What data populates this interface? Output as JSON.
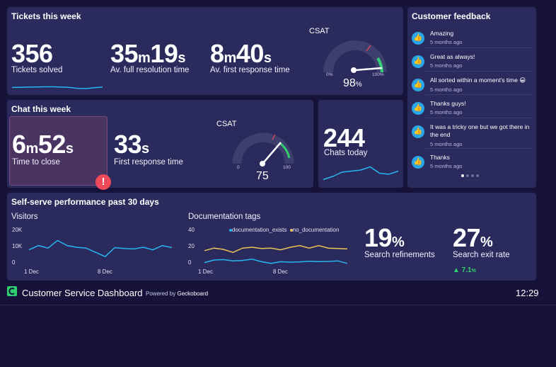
{
  "tickets": {
    "title": "Tickets this week",
    "solved": {
      "value": "356",
      "label": "Tickets solved"
    },
    "resolution": {
      "m": "35",
      "m_unit": "m",
      "s": "19",
      "s_unit": "s",
      "label": "Av. full resolution time"
    },
    "first_response": {
      "m": "8",
      "m_unit": "m",
      "s": "40",
      "s_unit": "s",
      "label": "Av. first response time"
    },
    "csat": {
      "label": "CSAT",
      "value": "98",
      "unit": "%",
      "min_label": "0%",
      "max_label": "100%",
      "level": 0.98
    }
  },
  "chat": {
    "title": "Chat this week",
    "time_to_close": {
      "m": "6",
      "m_unit": "m",
      "s": "52",
      "s_unit": "s",
      "label": "Time to close"
    },
    "first_response": {
      "s": "33",
      "s_unit": "s",
      "label": "First response time"
    },
    "csat": {
      "label": "CSAT",
      "value": "75",
      "min_label": "0",
      "max_label": "100",
      "level": 0.75
    },
    "chats_today": {
      "value": "244",
      "label": "Chats today"
    }
  },
  "feedback": {
    "title": "Customer feedback",
    "items": [
      {
        "text": "Amazing",
        "time": "5 months ago"
      },
      {
        "text": "Great as always!",
        "time": "5 months ago"
      },
      {
        "text": "All sorted within a moment's time 😀",
        "time": "5 months ago"
      },
      {
        "text": "Thanks guys!",
        "time": "5 months ago"
      },
      {
        "text": "It was a tricky one but we got there in the end",
        "time": "5 months ago"
      },
      {
        "text": "Thanks",
        "time": "5 months ago"
      }
    ]
  },
  "selfserve": {
    "title": "Self-serve performance past 30 days",
    "visitors": {
      "label": "Visitors",
      "y_ticks": [
        "20K",
        "10K",
        "0"
      ],
      "x_ticks": [
        "1 Dec",
        "8 Dec"
      ]
    },
    "docs": {
      "label": "Documentation tags",
      "legend": [
        "documentation_exists",
        "no_documentation"
      ],
      "y_ticks": [
        "40",
        "20",
        "0"
      ],
      "x_ticks": [
        "1 Dec",
        "8 Dec"
      ]
    },
    "refinements": {
      "value": "19",
      "unit": "%",
      "label": "Search refinements"
    },
    "exit_rate": {
      "value": "27",
      "unit": "%",
      "label": "Search exit rate",
      "delta": "7.1",
      "delta_unit": "%"
    }
  },
  "footer": {
    "title": "Customer Service Dashboard",
    "powered_prefix": "Powered by",
    "powered_brand": "Geckoboard",
    "clock": "12:29"
  },
  "colors": {
    "accent_blue": "#29b5f0",
    "accent_green": "#2fd06f",
    "accent_yellow": "#e8c458",
    "alert_red": "#ef4a5a"
  },
  "chart_data": [
    {
      "type": "line",
      "title": "",
      "values": [
        8,
        8.5,
        9,
        9.5,
        10,
        10,
        9,
        8,
        5,
        4.5,
        7,
        9
      ],
      "ylim": [
        0,
        40
      ]
    },
    {
      "type": "line",
      "title": "Visitors",
      "x": [
        "1 Dec",
        "",
        "",
        "",
        "",
        "",
        "",
        "8 Dec",
        "",
        "",
        "",
        "",
        "",
        "",
        "",
        ""
      ],
      "values": [
        8500,
        11000,
        9500,
        14000,
        11000,
        10000,
        9500,
        7000,
        4500,
        9800,
        9300,
        9000,
        10000,
        8500,
        11000,
        9800
      ],
      "ylim": [
        0,
        20000
      ]
    },
    {
      "type": "line",
      "title": "Documentation tags",
      "series": [
        {
          "name": "documentation_exists",
          "values": [
            2,
            5,
            5.5,
            4,
            4.5,
            6,
            3,
            1,
            3,
            2.5,
            2.8,
            3.5,
            3.2,
            3.3,
            4,
            1
          ]
        },
        {
          "name": "no_documentation",
          "values": [
            16,
            19,
            17.5,
            14,
            19,
            20,
            18.5,
            19,
            17,
            20,
            22,
            19,
            22,
            19,
            18.5,
            18
          ]
        }
      ],
      "ylim": [
        0,
        40
      ]
    },
    {
      "type": "line",
      "title": "",
      "values": [
        3,
        6,
        10,
        11,
        12,
        15,
        9,
        8,
        11
      ],
      "ylim": [
        0,
        20
      ]
    }
  ]
}
